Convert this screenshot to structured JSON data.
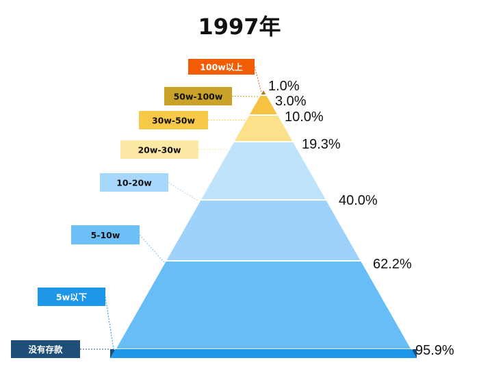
{
  "chart_data": {
    "type": "pyramid",
    "title": "1997年",
    "levels": [
      {
        "label": "100w以上",
        "cumulative_percent": 1.0,
        "percent_text": "1.0%",
        "fill": "#b07a1c",
        "box": "#f25c05",
        "text_color": "#ffffff"
      },
      {
        "label": "50w-100w",
        "cumulative_percent": 3.0,
        "percent_text": "3.0%",
        "fill": "#f5c241",
        "box": "#c9a227",
        "text_color": "#111111"
      },
      {
        "label": "30w-50w",
        "cumulative_percent": 10.0,
        "percent_text": "10.0%",
        "fill": "#fde08a",
        "box": "#f7c948",
        "text_color": "#111111"
      },
      {
        "label": "20w-30w",
        "cumulative_percent": 19.3,
        "percent_text": "19.3%",
        "fill": "#bfe3fb",
        "box": "#fde9a6",
        "text_color": "#111111"
      },
      {
        "label": "10-20w",
        "cumulative_percent": 40.0,
        "percent_text": "40.0%",
        "fill": "#9dd3fa",
        "box": "#a7d8fb",
        "text_color": "#111111"
      },
      {
        "label": "5-10w",
        "cumulative_percent": 62.2,
        "percent_text": "62.2%",
        "fill": "#67bdf6",
        "box": "#6cc0f7",
        "text_color": "#111111"
      },
      {
        "label": "5w以下",
        "cumulative_percent": 95.9,
        "percent_text": "95.9%",
        "fill": "#1e97e8",
        "box": "#1e97e8",
        "text_color": "#ffffff"
      },
      {
        "label": "没有存款",
        "cumulative_percent": null,
        "percent_text": "",
        "fill": "#1f4e79",
        "box": "#1f4e79",
        "text_color": "#ffffff"
      }
    ]
  }
}
